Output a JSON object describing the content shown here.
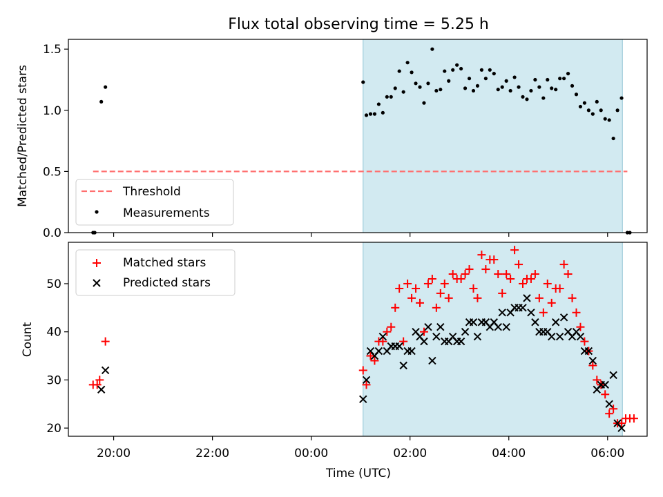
{
  "figure": {
    "title": "Flux total observing time = 5.25 h",
    "xlabel": "Time (UTC)"
  },
  "colors": {
    "shade": "#add8e6",
    "threshold": "#ff6f6f",
    "measurements": "#000000",
    "matched": "#ff0000",
    "predicted": "#000000"
  },
  "chart_data": [
    {
      "type": "scatter",
      "panel": "top",
      "ylabel": "Matched/Predicted stars",
      "ylim": [
        0.0,
        1.58
      ],
      "yticks": [
        0.0,
        0.5,
        1.0,
        1.5
      ],
      "ytick_labels": [
        "0.0",
        "0.5",
        "1.0",
        "1.5"
      ],
      "xlim": [
        "19:05",
        "06:48"
      ],
      "xticks": [
        "20:00",
        "22:00",
        "00:00",
        "02:00",
        "04:00",
        "06:00"
      ],
      "shaded_interval": [
        "01:03",
        "06:18"
      ],
      "legend": {
        "placement": "lower-left",
        "entries": [
          "Threshold",
          "Measurements"
        ]
      },
      "threshold": {
        "name": "Threshold",
        "y": 0.5,
        "x": [
          "19:35",
          "06:24"
        ]
      },
      "series": [
        {
          "name": "Measurements",
          "points": [
            [
              "19:35",
              0.0
            ],
            [
              "19:37",
              0.0
            ],
            [
              "19:45",
              1.07
            ],
            [
              "19:50",
              1.19
            ],
            [
              "01:03",
              1.23
            ],
            [
              "01:07",
              0.96
            ],
            [
              "01:12",
              0.97
            ],
            [
              "01:17",
              0.97
            ],
            [
              "01:22",
              1.05
            ],
            [
              "01:27",
              0.98
            ],
            [
              "01:32",
              1.11
            ],
            [
              "01:37",
              1.11
            ],
            [
              "01:42",
              1.18
            ],
            [
              "01:47",
              1.32
            ],
            [
              "01:52",
              1.15
            ],
            [
              "01:57",
              1.39
            ],
            [
              "02:02",
              1.31
            ],
            [
              "02:07",
              1.22
            ],
            [
              "02:12",
              1.19
            ],
            [
              "02:17",
              1.06
            ],
            [
              "02:22",
              1.22
            ],
            [
              "02:27",
              1.5
            ],
            [
              "02:32",
              1.16
            ],
            [
              "02:37",
              1.17
            ],
            [
              "02:42",
              1.32
            ],
            [
              "02:47",
              1.24
            ],
            [
              "02:52",
              1.33
            ],
            [
              "02:57",
              1.37
            ],
            [
              "03:02",
              1.34
            ],
            [
              "03:07",
              1.18
            ],
            [
              "03:12",
              1.26
            ],
            [
              "03:17",
              1.16
            ],
            [
              "03:22",
              1.2
            ],
            [
              "03:27",
              1.33
            ],
            [
              "03:32",
              1.26
            ],
            [
              "03:37",
              1.33
            ],
            [
              "03:42",
              1.3
            ],
            [
              "03:47",
              1.17
            ],
            [
              "03:52",
              1.19
            ],
            [
              "03:57",
              1.24
            ],
            [
              "04:02",
              1.16
            ],
            [
              "04:07",
              1.27
            ],
            [
              "04:12",
              1.19
            ],
            [
              "04:17",
              1.11
            ],
            [
              "04:22",
              1.09
            ],
            [
              "04:27",
              1.16
            ],
            [
              "04:32",
              1.25
            ],
            [
              "04:37",
              1.19
            ],
            [
              "04:42",
              1.1
            ],
            [
              "04:47",
              1.25
            ],
            [
              "04:52",
              1.18
            ],
            [
              "04:57",
              1.17
            ],
            [
              "05:02",
              1.26
            ],
            [
              "05:07",
              1.26
            ],
            [
              "05:12",
              1.3
            ],
            [
              "05:17",
              1.2
            ],
            [
              "05:22",
              1.13
            ],
            [
              "05:27",
              1.03
            ],
            [
              "05:32",
              1.06
            ],
            [
              "05:37",
              1.0
            ],
            [
              "05:42",
              0.97
            ],
            [
              "05:47",
              1.07
            ],
            [
              "05:52",
              1.0
            ],
            [
              "05:57",
              0.93
            ],
            [
              "06:02",
              0.92
            ],
            [
              "06:07",
              0.77
            ],
            [
              "06:12",
              1.0
            ],
            [
              "06:17",
              1.1
            ],
            [
              "06:24",
              0.0
            ],
            [
              "06:27",
              0.0
            ]
          ]
        }
      ]
    },
    {
      "type": "scatter",
      "panel": "bottom",
      "ylabel": "Count",
      "ylim": [
        18.3,
        58.6
      ],
      "yticks": [
        20,
        30,
        40,
        50
      ],
      "ytick_labels": [
        "20",
        "30",
        "40",
        "50"
      ],
      "xlim": [
        "19:05",
        "06:48"
      ],
      "xticks": [
        "20:00",
        "22:00",
        "00:00",
        "02:00",
        "04:00",
        "06:00"
      ],
      "xtick_labels": [
        "20:00",
        "22:00",
        "00:00",
        "02:00",
        "04:00",
        "06:00"
      ],
      "shaded_interval": [
        "01:03",
        "06:18"
      ],
      "legend": {
        "placement": "upper-left",
        "entries": [
          "Matched stars",
          "Predicted stars"
        ]
      },
      "series": [
        {
          "name": "Matched stars",
          "marker": "+",
          "points": [
            [
              "19:35",
              29
            ],
            [
              "19:40",
              29
            ],
            [
              "19:43",
              30
            ],
            [
              "19:50",
              38
            ],
            [
              "01:03",
              32
            ],
            [
              "01:07",
              29
            ],
            [
              "01:12",
              35
            ],
            [
              "01:17",
              34
            ],
            [
              "01:22",
              38
            ],
            [
              "01:27",
              38
            ],
            [
              "01:32",
              40
            ],
            [
              "01:37",
              41
            ],
            [
              "01:42",
              45
            ],
            [
              "01:47",
              49
            ],
            [
              "01:52",
              38
            ],
            [
              "01:57",
              50
            ],
            [
              "02:02",
              47
            ],
            [
              "02:07",
              49
            ],
            [
              "02:12",
              46
            ],
            [
              "02:17",
              40
            ],
            [
              "02:22",
              50
            ],
            [
              "02:27",
              51
            ],
            [
              "02:32",
              45
            ],
            [
              "02:37",
              48
            ],
            [
              "02:42",
              50
            ],
            [
              "02:47",
              47
            ],
            [
              "02:52",
              52
            ],
            [
              "02:57",
              51
            ],
            [
              "03:02",
              51
            ],
            [
              "03:07",
              52
            ],
            [
              "03:12",
              53
            ],
            [
              "03:17",
              49
            ],
            [
              "03:22",
              47
            ],
            [
              "03:27",
              56
            ],
            [
              "03:32",
              53
            ],
            [
              "03:37",
              55
            ],
            [
              "03:42",
              55
            ],
            [
              "03:47",
              52
            ],
            [
              "03:52",
              48
            ],
            [
              "03:57",
              52
            ],
            [
              "04:02",
              51
            ],
            [
              "04:07",
              57
            ],
            [
              "04:12",
              54
            ],
            [
              "04:17",
              50
            ],
            [
              "04:22",
              51
            ],
            [
              "04:27",
              51
            ],
            [
              "04:32",
              52
            ],
            [
              "04:37",
              47
            ],
            [
              "04:42",
              44
            ],
            [
              "04:47",
              50
            ],
            [
              "04:52",
              46
            ],
            [
              "04:57",
              49
            ],
            [
              "05:02",
              49
            ],
            [
              "05:07",
              54
            ],
            [
              "05:12",
              52
            ],
            [
              "05:17",
              47
            ],
            [
              "05:22",
              44
            ],
            [
              "05:27",
              41
            ],
            [
              "05:32",
              38
            ],
            [
              "05:37",
              36
            ],
            [
              "05:42",
              33
            ],
            [
              "05:47",
              30
            ],
            [
              "05:52",
              29
            ],
            [
              "05:57",
              27
            ],
            [
              "06:02",
              23
            ],
            [
              "06:07",
              24
            ],
            [
              "06:12",
              21
            ],
            [
              "06:17",
              21
            ],
            [
              "06:22",
              22
            ],
            [
              "06:27",
              22
            ],
            [
              "06:32",
              22
            ]
          ]
        },
        {
          "name": "Predicted stars",
          "marker": "x",
          "points": [
            [
              "19:45",
              28
            ],
            [
              "19:50",
              32
            ],
            [
              "01:03",
              26
            ],
            [
              "01:07",
              30
            ],
            [
              "01:12",
              36
            ],
            [
              "01:17",
              35
            ],
            [
              "01:22",
              36
            ],
            [
              "01:27",
              39
            ],
            [
              "01:32",
              36
            ],
            [
              "01:37",
              37
            ],
            [
              "01:42",
              37
            ],
            [
              "01:47",
              37
            ],
            [
              "01:52",
              33
            ],
            [
              "01:57",
              36
            ],
            [
              "02:02",
              36
            ],
            [
              "02:07",
              40
            ],
            [
              "02:12",
              39
            ],
            [
              "02:17",
              38
            ],
            [
              "02:22",
              41
            ],
            [
              "02:27",
              34
            ],
            [
              "02:32",
              39
            ],
            [
              "02:37",
              41
            ],
            [
              "02:42",
              38
            ],
            [
              "02:47",
              38
            ],
            [
              "02:52",
              39
            ],
            [
              "02:57",
              38
            ],
            [
              "03:02",
              38
            ],
            [
              "03:07",
              40
            ],
            [
              "03:12",
              42
            ],
            [
              "03:17",
              42
            ],
            [
              "03:22",
              39
            ],
            [
              "03:27",
              42
            ],
            [
              "03:32",
              42
            ],
            [
              "03:37",
              41
            ],
            [
              "03:42",
              42
            ],
            [
              "03:47",
              41
            ],
            [
              "03:52",
              44
            ],
            [
              "03:57",
              41
            ],
            [
              "04:02",
              44
            ],
            [
              "04:07",
              45
            ],
            [
              "04:12",
              45
            ],
            [
              "04:17",
              45
            ],
            [
              "04:22",
              47
            ],
            [
              "04:27",
              44
            ],
            [
              "04:32",
              42
            ],
            [
              "04:37",
              40
            ],
            [
              "04:42",
              40
            ],
            [
              "04:47",
              40
            ],
            [
              "04:52",
              39
            ],
            [
              "04:57",
              42
            ],
            [
              "05:02",
              39
            ],
            [
              "05:07",
              43
            ],
            [
              "05:12",
              40
            ],
            [
              "05:17",
              39
            ],
            [
              "05:22",
              40
            ],
            [
              "05:27",
              39
            ],
            [
              "05:32",
              36
            ],
            [
              "05:37",
              36
            ],
            [
              "05:42",
              34
            ],
            [
              "05:47",
              28
            ],
            [
              "05:52",
              29
            ],
            [
              "05:57",
              29
            ],
            [
              "06:02",
              25
            ],
            [
              "06:07",
              31
            ],
            [
              "06:12",
              21
            ],
            [
              "06:17",
              20
            ]
          ]
        }
      ]
    }
  ]
}
